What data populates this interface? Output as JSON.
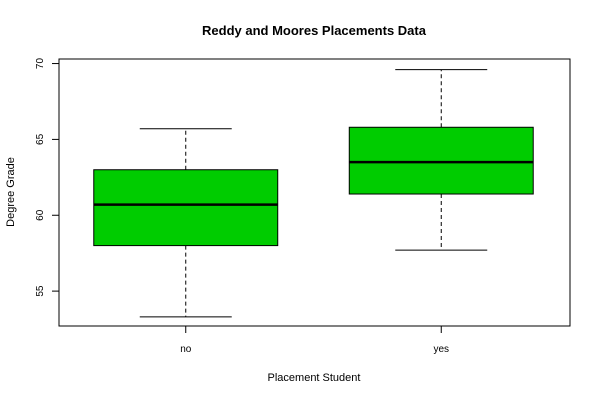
{
  "chart_data": {
    "type": "boxplot",
    "title": "Reddy and Moores Placements Data",
    "xlabel": "Placement Student",
    "ylabel": "Degree Grade",
    "ylim": [
      52.7,
      70.3
    ],
    "yticks": [
      55,
      60,
      65,
      70
    ],
    "categories": [
      "no",
      "yes"
    ],
    "boxes": [
      {
        "category": "no",
        "whisker_low": 53.3,
        "q1": 58.0,
        "median": 60.7,
        "q3": 63.0,
        "whisker_high": 65.7
      },
      {
        "category": "yes",
        "whisker_low": 57.7,
        "q1": 61.4,
        "median": 63.5,
        "q3": 65.8,
        "whisker_high": 69.6
      }
    ],
    "grid": false,
    "legend": "none"
  },
  "colors": {
    "box_fill": "#00cc00",
    "stroke": "#000000",
    "background": "#ffffff"
  }
}
